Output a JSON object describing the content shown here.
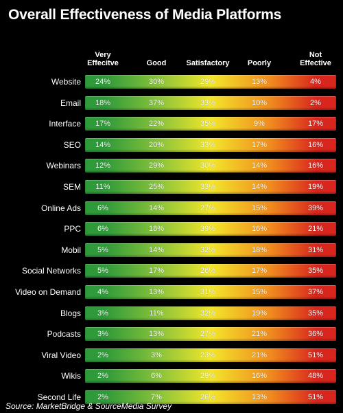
{
  "chart_data": {
    "type": "table",
    "title": "Overall Effectiveness of Media Platforms",
    "columns": [
      [
        "Very",
        "Effecitve"
      ],
      [
        "Good"
      ],
      [
        "Satisfactory"
      ],
      [
        "Poorly"
      ],
      [
        "Not",
        "Effective"
      ]
    ],
    "rows": [
      {
        "label": "Website",
        "values": [
          "24%",
          "30%",
          "29%",
          "13%",
          "4%"
        ]
      },
      {
        "label": "Email",
        "values": [
          "18%",
          "37%",
          "33%",
          "10%",
          "2%"
        ]
      },
      {
        "label": "Interface",
        "values": [
          "17%",
          "22%",
          "35%",
          "9%",
          "17%"
        ]
      },
      {
        "label": "SEO",
        "values": [
          "14%",
          "20%",
          "33%",
          "17%",
          "16%"
        ]
      },
      {
        "label": "Webinars",
        "values": [
          "12%",
          "29%",
          "30%",
          "14%",
          "16%"
        ]
      },
      {
        "label": "SEM",
        "values": [
          "11%",
          "25%",
          "33%",
          "14%",
          "19%"
        ]
      },
      {
        "label": "Online Ads",
        "values": [
          "6%",
          "14%",
          "27%",
          "15%",
          "39%"
        ]
      },
      {
        "label": "PPC",
        "values": [
          "6%",
          "18%",
          "39%",
          "16%",
          "21%"
        ]
      },
      {
        "label": "Mobil",
        "values": [
          "5%",
          "14%",
          "32%",
          "18%",
          "31%"
        ]
      },
      {
        "label": "Social Networks",
        "values": [
          "5%",
          "17%",
          "26%",
          "17%",
          "35%"
        ]
      },
      {
        "label": "Video on Demand",
        "values": [
          "4%",
          "13%",
          "31%",
          "15%",
          "37%"
        ]
      },
      {
        "label": "Blogs",
        "values": [
          "3%",
          "11%",
          "32%",
          "19%",
          "35%"
        ]
      },
      {
        "label": "Podcasts",
        "values": [
          "3%",
          "13%",
          "27%",
          "21%",
          "36%"
        ]
      },
      {
        "label": "Viral Video",
        "values": [
          "2%",
          "3%",
          "23%",
          "21%",
          "51%"
        ]
      },
      {
        "label": "Wikis",
        "values": [
          "2%",
          "6%",
          "29%",
          "16%",
          "48%"
        ]
      },
      {
        "label": "Second Life",
        "values": [
          "2%",
          "7%",
          "26%",
          "13%",
          "51%"
        ]
      }
    ],
    "colors": {
      "very_effective": "#2f9a3a",
      "good": "#8cc43a",
      "satisfactory": "#f3e62a",
      "poorly": "#f08a1e",
      "not_effective": "#d8261e"
    }
  },
  "source": "Source: MarketBridge & SourceMedia Survey"
}
